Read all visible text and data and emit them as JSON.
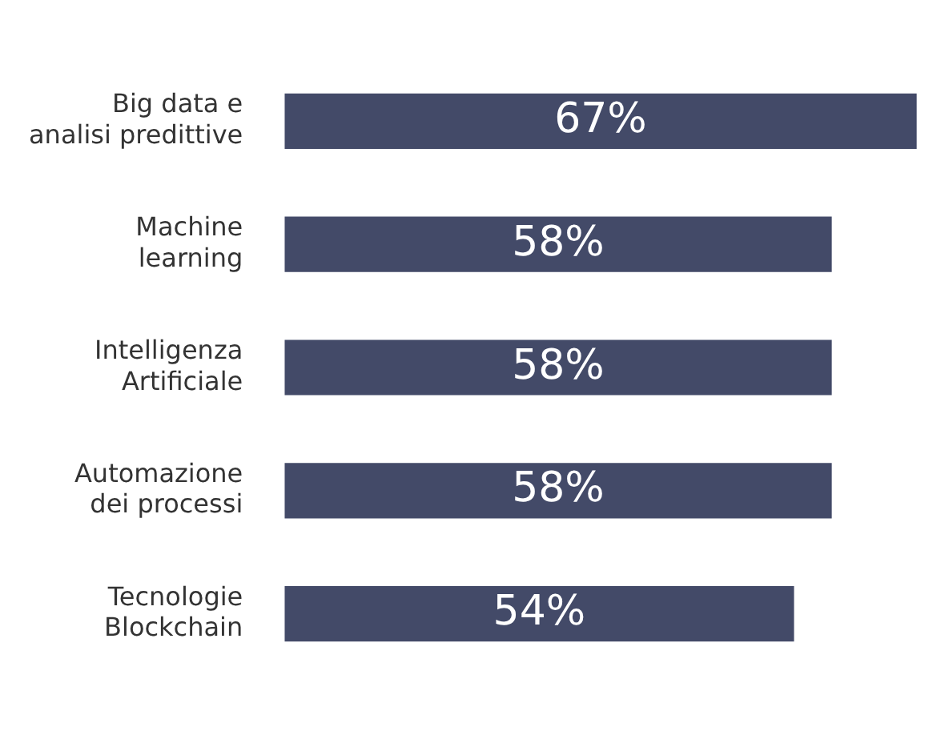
{
  "chart_data": {
    "type": "bar",
    "orientation": "horizontal",
    "categories": [
      "Big data e analisi predittive",
      "Machine learning",
      "Intelligenza Artificiale",
      "Automazione dei processi",
      "Tecnologie Blockchain"
    ],
    "values": [
      67,
      58,
      58,
      58,
      54
    ],
    "color": "#434a68",
    "value_labels": [
      "67%",
      "58%",
      "58%",
      "58%",
      "54%"
    ]
  }
}
